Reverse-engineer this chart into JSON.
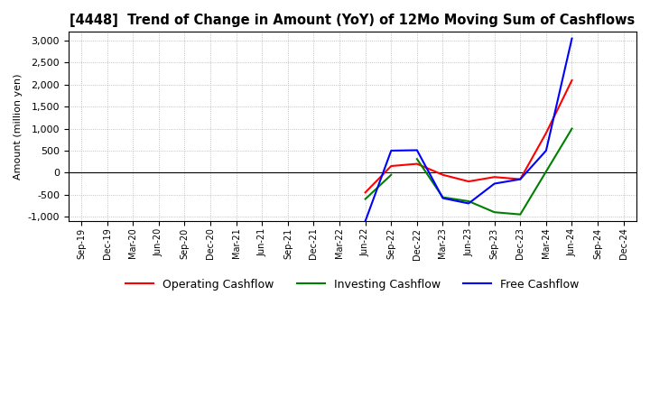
{
  "title": "[4448]  Trend of Change in Amount (YoY) of 12Mo Moving Sum of Cashflows",
  "ylabel": "Amount (million yen)",
  "x_labels": [
    "Sep-19",
    "Dec-19",
    "Mar-20",
    "Jun-20",
    "Sep-20",
    "Dec-20",
    "Mar-21",
    "Jun-21",
    "Sep-21",
    "Dec-21",
    "Mar-22",
    "Jun-22",
    "Sep-22",
    "Dec-22",
    "Mar-23",
    "Jun-23",
    "Sep-23",
    "Dec-23",
    "Mar-24",
    "Jun-24",
    "Sep-24",
    "Dec-24"
  ],
  "ylim": [
    -1100,
    3200
  ],
  "yticks": [
    -1000,
    -500,
    0,
    500,
    1000,
    1500,
    2000,
    2500,
    3000
  ],
  "operating_color": "#ff0000",
  "investing_color": "#008000",
  "free_color": "#0000ff",
  "background_color": "#ffffff",
  "grid_color": "#b0b0b0",
  "op_x": [
    11,
    12,
    13,
    14,
    15,
    16,
    17,
    18,
    19
  ],
  "op_y": [
    -450,
    150,
    200,
    -50,
    -200,
    -100,
    -150,
    900,
    2100
  ],
  "inv_x": [
    11,
    12,
    13,
    14,
    15,
    16,
    17,
    19
  ],
  "inv_y": [
    -600,
    -50,
    310,
    -560,
    -650,
    -900,
    -950,
    1000
  ],
  "free_x": [
    11,
    12,
    13,
    14,
    15,
    16,
    17,
    18,
    19
  ],
  "free_y": [
    -1100,
    500,
    510,
    -580,
    -700,
    -250,
    -150,
    500,
    3050
  ],
  "legend_labels": [
    "Operating Cashflow",
    "Investing Cashflow",
    "Free Cashflow"
  ]
}
